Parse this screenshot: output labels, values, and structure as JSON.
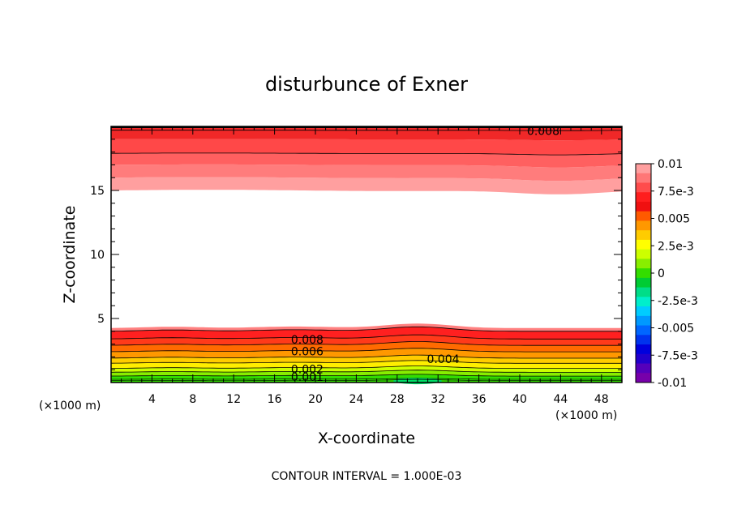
{
  "chart_data": {
    "type": "heatmap",
    "title": "disturbunce of Exner",
    "xlabel": "X-coordinate",
    "ylabel": "Z-coordinate",
    "x_unit_left": "(×1000 m)",
    "x_unit_right": "(×1000 m)",
    "xlim": [
      0,
      50
    ],
    "ylim": [
      0,
      20
    ],
    "xticks": [
      4,
      8,
      12,
      16,
      20,
      24,
      28,
      32,
      36,
      40,
      44,
      48
    ],
    "yticks": [
      5,
      10,
      15
    ],
    "contour_interval_text": "CONTOUR INTERVAL = 1.000E-03",
    "colorbar": {
      "labels": [
        "0.01",
        "7.5e-3",
        "0.005",
        "2.5e-3",
        "0",
        "-2.5e-3",
        "-0.005",
        "-7.5e-3",
        "-0.01"
      ],
      "colors_top_to_bottom": [
        "#ff9f9f",
        "#ff7777",
        "#ff4c4c",
        "#ff1e1e",
        "#f01010",
        "#ff5a00",
        "#ff9800",
        "#ffcc00",
        "#ffff00",
        "#ccff00",
        "#88ee00",
        "#33dd00",
        "#00cc33",
        "#00dd88",
        "#00eecc",
        "#00ccff",
        "#0099ff",
        "#0066ff",
        "#0033ee",
        "#0000dd",
        "#2200cc",
        "#5500bb",
        "#7700aa"
      ],
      "min": -0.01,
      "max": 0.01
    },
    "lower_band": {
      "description_levels": [
        0.001,
        0.002,
        0.003,
        0.004,
        0.005,
        0.006,
        0.007,
        0.008,
        0.009
      ],
      "level_heights_z": [
        0.5,
        0.8,
        1.1,
        1.5,
        1.9,
        2.4,
        2.9,
        3.4,
        4.0
      ],
      "bump_center_x": 30,
      "bump_amplitude_z": 0.35
    },
    "upper_band": {
      "levels": [
        0.009,
        0.008
      ],
      "lower_edge_z": 15.0,
      "level_heights_z": [
        15.0,
        16.8,
        17.9,
        19.0
      ]
    },
    "contour_labels": [
      {
        "text": "0.008",
        "x": 19.2,
        "y": 3.35
      },
      {
        "text": "0.006",
        "x": 19.2,
        "y": 2.45
      },
      {
        "text": "0.004",
        "x": 32.5,
        "y": 1.85
      },
      {
        "text": "0.002",
        "x": 19.2,
        "y": 1.05
      },
      {
        "text": "0.001",
        "x": 19.2,
        "y": 0.45
      },
      {
        "text": "0.008",
        "x": 42.3,
        "y": 19.65
      }
    ]
  }
}
